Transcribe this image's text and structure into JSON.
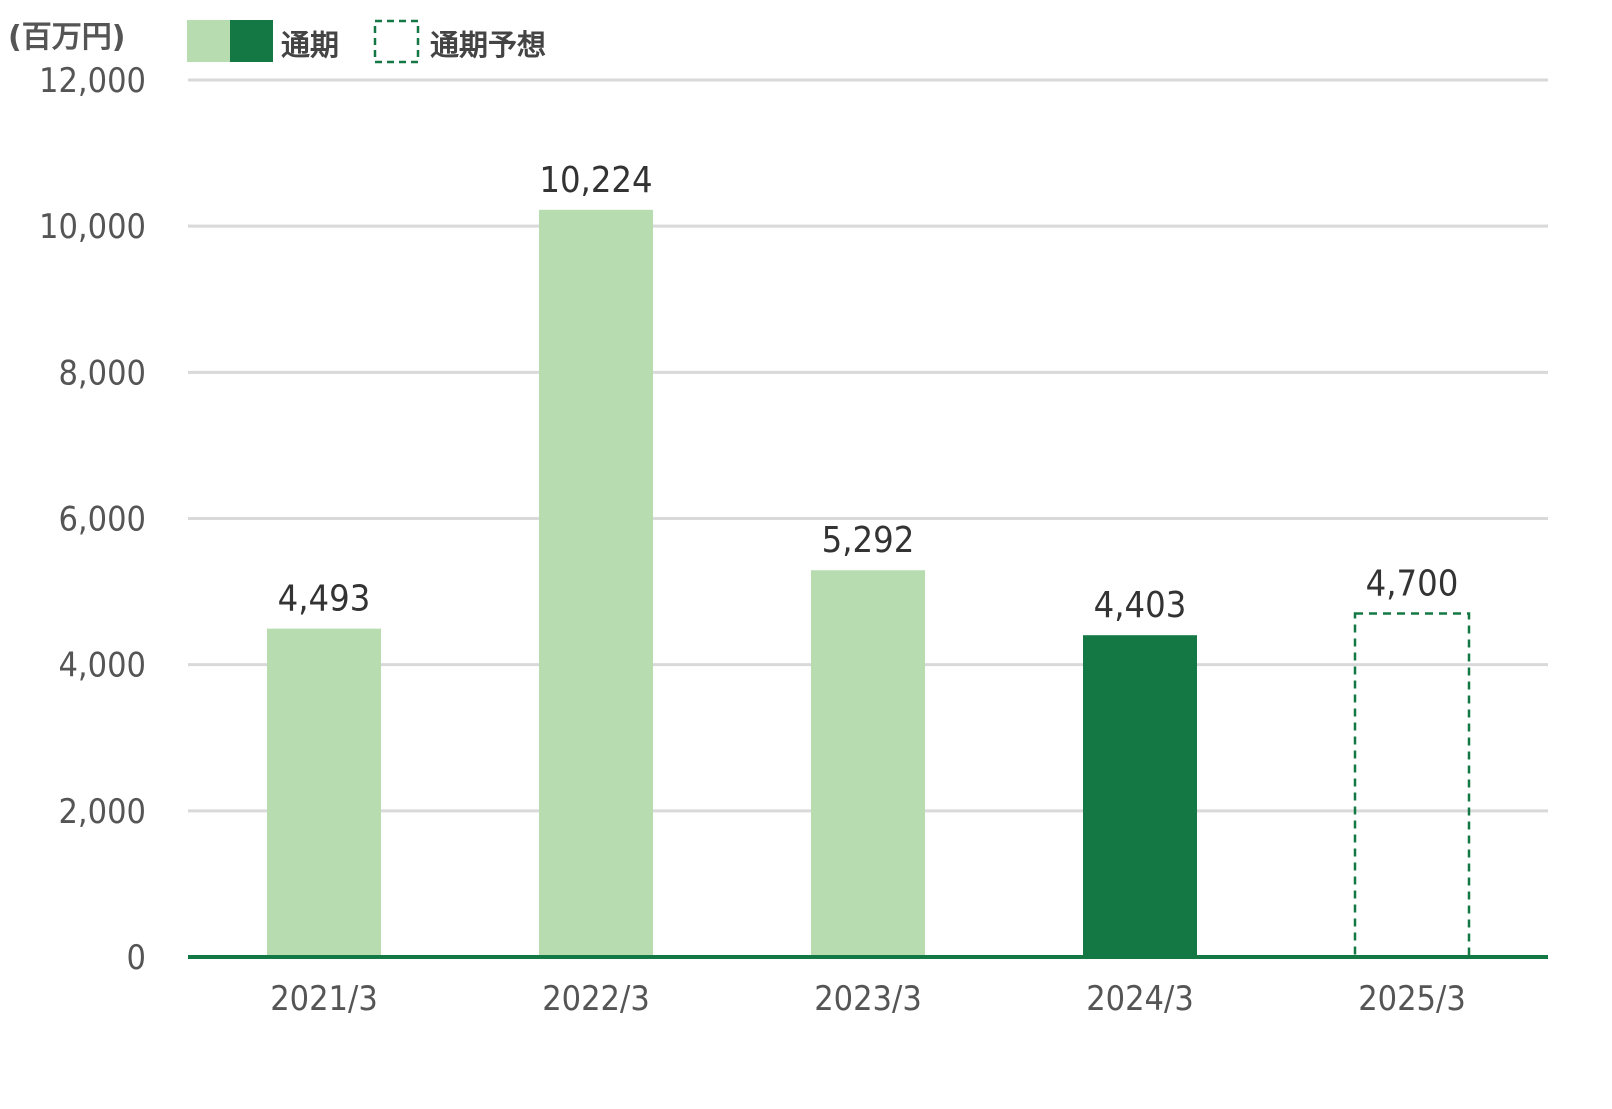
{
  "chart_data": {
    "type": "bar",
    "unit_label": "(百万円)",
    "categories": [
      "2021/3",
      "2022/3",
      "2023/3",
      "2024/3",
      "2025/3"
    ],
    "values": [
      4493,
      10224,
      5292,
      4403,
      4700
    ],
    "value_labels": [
      "4,493",
      "10,224",
      "5,292",
      "4,403",
      "4,700"
    ],
    "bar_styles": [
      "past",
      "past",
      "past",
      "current",
      "forecast"
    ],
    "ylim": [
      0,
      12000
    ],
    "yticks": [
      0,
      2000,
      4000,
      6000,
      8000,
      10000,
      12000
    ],
    "ytick_labels": [
      "0",
      "2,000",
      "4,000",
      "6,000",
      "8,000",
      "10,000",
      "12,000"
    ],
    "grid": true,
    "legend_position": "top-left",
    "legend": [
      {
        "label": "通期",
        "style": "actual"
      },
      {
        "label": "通期予想",
        "style": "forecast"
      }
    ],
    "colors": {
      "past": "#b7dcb0",
      "current": "#147844",
      "forecast_border": "#147844",
      "grid": "#d9d9d9",
      "axis": "#147844"
    }
  }
}
